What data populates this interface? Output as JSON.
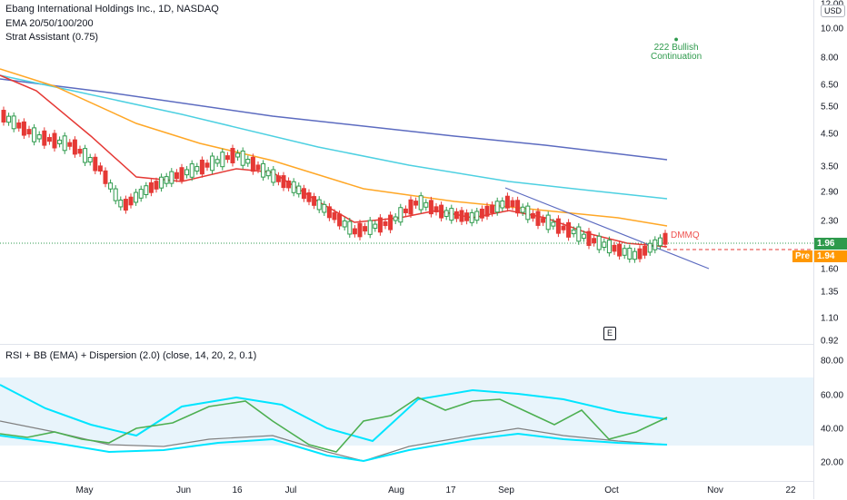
{
  "symbol": {
    "title": "Ebang International Holdings Inc., 1D, NASDAQ",
    "indicator1": "EMA 20/50/100/200",
    "indicator2": "Strat Assistant (0.75)"
  },
  "currency_badge": "USD",
  "price_axis": [
    "12.00",
    "10.00",
    "8.00",
    "6.50",
    "5.50",
    "4.50",
    "3.50",
    "2.90",
    "2.30",
    "1.60",
    "1.35",
    "1.10",
    "0.92"
  ],
  "price_badges": {
    "last": {
      "value": "1.96",
      "color": "#2e9a4c"
    },
    "pre_label": "Pre",
    "pre": {
      "value": "1.94",
      "color": "#ff9800"
    }
  },
  "annotations": {
    "bullish": {
      "line1": "222 Bullish",
      "line2": "Continuation"
    },
    "dmmq": "DMMQ",
    "earnings": "E"
  },
  "oscillator": {
    "title": "RSI + BB (EMA) + Dispersion (2.0) (close, 14, 20, 2, 0.1)",
    "axis": [
      "80.00",
      "60.00",
      "40.00",
      "20.00"
    ]
  },
  "time_axis": [
    "May",
    "Jun",
    "16",
    "Jul",
    "Aug",
    "17",
    "Sep",
    "Oct",
    "Nov",
    "22"
  ],
  "colors": {
    "ema20": "#e53935",
    "ema50": "#ffa726",
    "ema100": "#4dd0e1",
    "ema200": "#5c6bc0",
    "bull": "#2e9a4c",
    "bear": "#e53935",
    "rsi_up": "#4caf50",
    "rsi_down": "#f44336",
    "rsi_mid": "#ffeb3b",
    "bb_band": "#00e5ff",
    "bb_basis": "#808080"
  }
}
